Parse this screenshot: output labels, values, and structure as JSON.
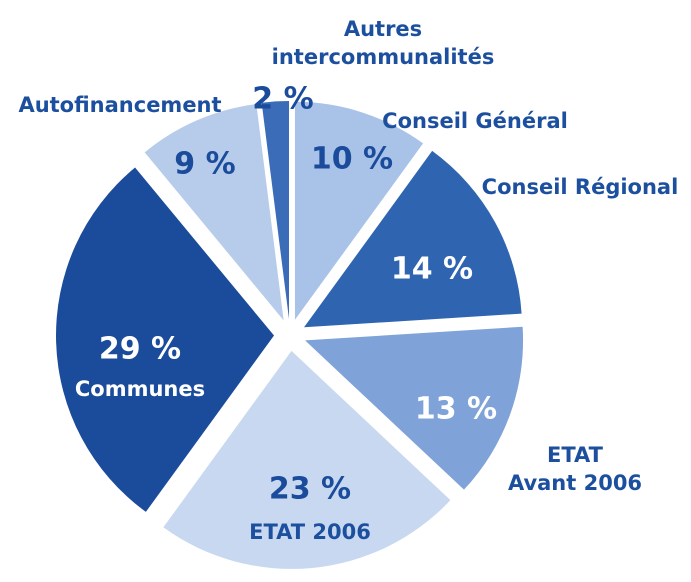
{
  "chart_data": {
    "type": "pie",
    "categories": [
      "Conseil Général",
      "Conseil Régional",
      "ETAT\nAvant 2006",
      "ETAT 2006",
      "Communes",
      "Autofinancement",
      "Autres\nintercommunalités"
    ],
    "values": [
      10,
      14,
      13,
      23,
      29,
      9,
      2
    ],
    "value_labels": [
      "10 %",
      "14 %",
      "13 %",
      "23 %",
      "29 %",
      "9 %",
      "2 %"
    ],
    "colors": [
      "#a9c3e8",
      "#2f64b0",
      "#7fa3d8",
      "#c7d8f0",
      "#1b4b9b",
      "#b6ccea",
      "#3a6cb8"
    ]
  }
}
